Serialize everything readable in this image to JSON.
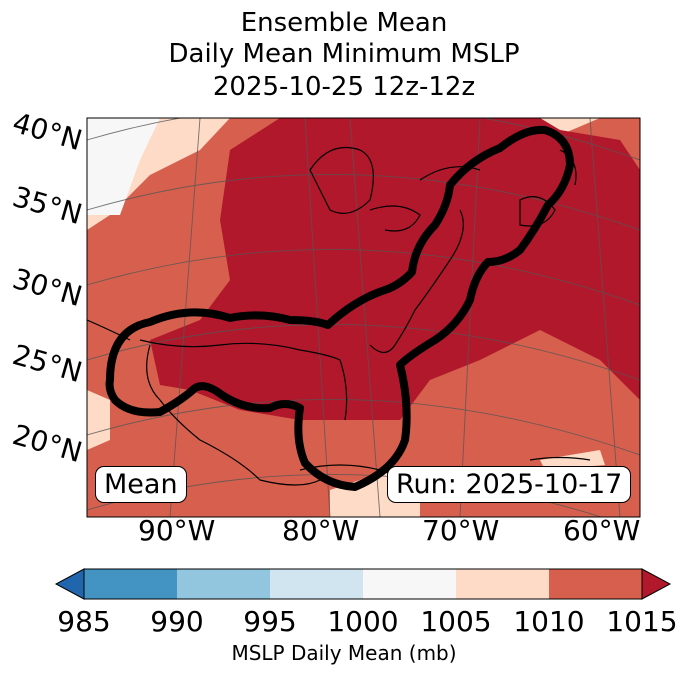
{
  "title": {
    "line1": "Ensemble Mean",
    "line2": "Daily Mean Minimum MSLP",
    "line3": "2025-10-25 12z-12z"
  },
  "map": {
    "lat_labels": [
      "40°N",
      "35°N",
      "30°N",
      "25°N",
      "20°N"
    ],
    "lon_labels": [
      "90°W",
      "80°W",
      "70°W",
      "60°W"
    ],
    "mean_box": "Mean",
    "run_box": "Run: 2025-10-17",
    "outline_color": "#000000"
  },
  "colorbar": {
    "ticks": [
      "985",
      "990",
      "995",
      "1000",
      "1005",
      "1010",
      "1015"
    ],
    "label": "MSLP Daily Mean (mb)",
    "colors": [
      "#2166ac",
      "#4393c3",
      "#92c5de",
      "#d1e5f0",
      "#f7f7f7",
      "#fddbc7",
      "#d6604d",
      "#b2182b"
    ]
  }
}
